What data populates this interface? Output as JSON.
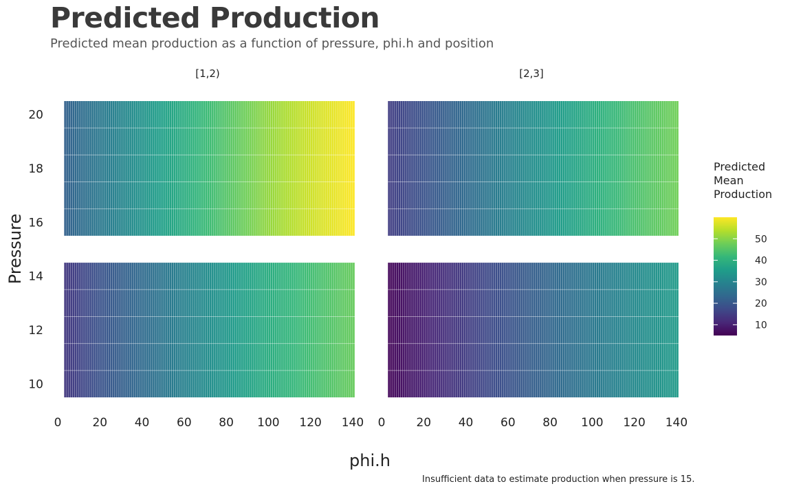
{
  "title": "Predicted Production",
  "subtitle": "Predicted mean production as a function of pressure, phi.h and position",
  "caption": "Insufficient data to estimate production when pressure is 15.",
  "colors": {
    "viridis": [
      "#440154",
      "#482878",
      "#3e4a89",
      "#31688e",
      "#26828e",
      "#1f9e89",
      "#35b779",
      "#6ece58",
      "#b5de2b",
      "#fde725"
    ]
  },
  "chart_data": {
    "type": "heatmap",
    "xlabel": "phi.h",
    "ylabel": "Pressure",
    "x_ticks": [
      0,
      20,
      40,
      60,
      80,
      100,
      120,
      140
    ],
    "y_ticks": [
      10,
      12,
      14,
      16,
      18,
      20
    ],
    "xlim": [
      0,
      141
    ],
    "ylim": [
      9.5,
      20.5
    ],
    "pressure_groups": [
      {
        "range": [
          9.5,
          14.5
        ]
      },
      {
        "range": [
          15.5,
          20.5
        ]
      }
    ],
    "facets": [
      {
        "label": "[1,2)",
        "low_pressure": {
          "phi_h": [
            3,
            20,
            40,
            60,
            80,
            100,
            120,
            141
          ],
          "production": [
            14,
            19,
            24,
            29,
            34,
            39,
            43,
            47
          ]
        },
        "high_pressure": {
          "phi_h": [
            3,
            20,
            40,
            60,
            80,
            100,
            120,
            141
          ],
          "production": [
            22,
            27,
            33,
            39,
            45,
            51,
            56,
            60
          ]
        }
      },
      {
        "label": "[2,3]",
        "low_pressure": {
          "phi_h": [
            3,
            20,
            40,
            60,
            80,
            100,
            120,
            141
          ],
          "production": [
            6,
            10,
            15,
            19,
            23,
            27,
            31,
            35
          ]
        },
        "high_pressure": {
          "phi_h": [
            3,
            20,
            40,
            60,
            80,
            100,
            120,
            141
          ],
          "production": [
            15,
            19,
            24,
            29,
            34,
            39,
            44,
            48
          ]
        }
      }
    ],
    "legend": {
      "title": "Predicted Mean Production",
      "ticks": [
        10,
        20,
        30,
        40,
        50
      ],
      "range": [
        5,
        60
      ],
      "placement": "right"
    }
  }
}
